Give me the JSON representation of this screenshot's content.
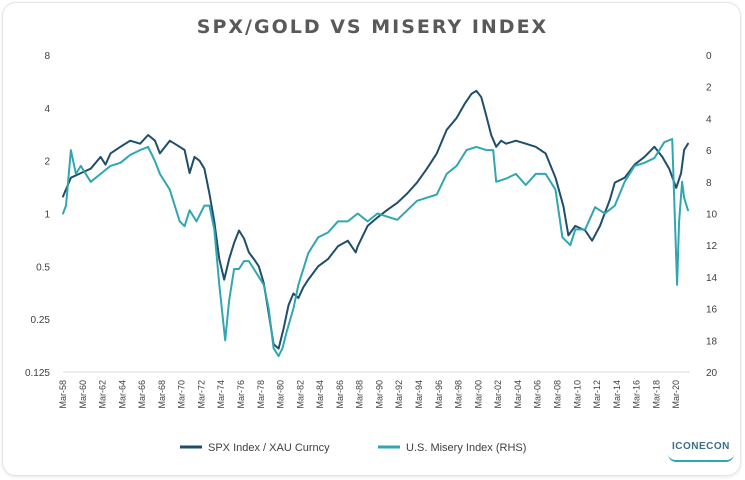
{
  "chart_data": {
    "type": "line",
    "title": "SPX/GOLD VS MISERY INDEX",
    "left_axis": {
      "scale": "log2",
      "ticks": [
        8,
        4,
        2,
        1,
        0.5,
        0.25,
        0.125
      ],
      "tick_labels": [
        "8",
        "4",
        "2",
        "1",
        "0.5",
        "0.25",
        "0.125"
      ],
      "range": [
        0.125,
        8
      ]
    },
    "right_axis": {
      "inverted": true,
      "ticks": [
        0,
        2,
        4,
        6,
        8,
        10,
        12,
        14,
        16,
        18,
        20
      ],
      "tick_labels": [
        "0",
        "2",
        "4",
        "6",
        "8",
        "10",
        "12",
        "14",
        "16",
        "18",
        "20"
      ],
      "range": [
        0,
        20
      ]
    },
    "x_axis": {
      "range": [
        1958.2,
        2021.6
      ],
      "tick_labels": [
        "Mar-58",
        "Mar-60",
        "Mar-62",
        "Mar-64",
        "Mar-66",
        "Mar-68",
        "Mar-70",
        "Mar-72",
        "Mar-74",
        "Mar-76",
        "Mar-78",
        "Mar-80",
        "Mar-82",
        "Mar-84",
        "Mar-86",
        "Mar-88",
        "Mar-90",
        "Mar-92",
        "Mar-94",
        "Mar-96",
        "Mar-98",
        "Mar-00",
        "Mar-02",
        "Mar-04",
        "Mar-06",
        "Mar-08",
        "Mar-10",
        "Mar-12",
        "Mar-14",
        "Mar-16",
        "Mar-18",
        "Mar-20"
      ]
    },
    "series": [
      {
        "name": "SPX Index / XAU Curncy",
        "color": "#1f4e6b",
        "axis": "left",
        "x": [
          1958.2,
          1959,
          1960,
          1961,
          1962,
          1962.5,
          1963,
          1964,
          1965,
          1966,
          1966.8,
          1967.5,
          1968,
          1969,
          1970,
          1970.5,
          1971,
          1971.5,
          1972,
          1972.5,
          1973,
          1973.5,
          1974,
          1974.5,
          1975,
          1975.5,
          1976,
          1976.5,
          1977,
          1977.5,
          1978,
          1978.5,
          1979,
          1979.5,
          1980,
          1980.5,
          1981,
          1981.5,
          1982,
          1982.5,
          1983,
          1984,
          1985,
          1986,
          1987,
          1987.8,
          1988,
          1989,
          1990,
          1991,
          1992,
          1993,
          1994,
          1995,
          1996,
          1997,
          1998,
          1998.8,
          1999.5,
          2000,
          2000.5,
          2001,
          2001.5,
          2002,
          2002.5,
          2003,
          2004,
          2005,
          2006,
          2007,
          2008,
          2008.8,
          2009.3,
          2010,
          2011,
          2011.7,
          2012.5,
          2013.5,
          2014,
          2015,
          2016,
          2017,
          2018,
          2018.8,
          2019.5,
          2020.2,
          2020.7,
          2021,
          2021.4
        ],
        "y": [
          1.25,
          1.6,
          1.7,
          1.8,
          2.1,
          1.9,
          2.2,
          2.4,
          2.6,
          2.5,
          2.8,
          2.6,
          2.2,
          2.6,
          2.4,
          2.3,
          1.7,
          2.1,
          2.0,
          1.8,
          1.3,
          0.9,
          0.55,
          0.42,
          0.55,
          0.68,
          0.8,
          0.72,
          0.6,
          0.55,
          0.5,
          0.4,
          0.27,
          0.18,
          0.17,
          0.22,
          0.3,
          0.35,
          0.33,
          0.38,
          0.42,
          0.5,
          0.55,
          0.65,
          0.7,
          0.6,
          0.65,
          0.85,
          0.95,
          1.05,
          1.15,
          1.3,
          1.5,
          1.8,
          2.2,
          3.0,
          3.5,
          4.2,
          4.8,
          5.0,
          4.6,
          3.6,
          2.8,
          2.4,
          2.6,
          2.5,
          2.6,
          2.5,
          2.4,
          2.2,
          1.6,
          1.1,
          0.75,
          0.85,
          0.8,
          0.7,
          0.85,
          1.2,
          1.5,
          1.6,
          1.9,
          2.1,
          2.4,
          2.1,
          1.8,
          1.4,
          1.7,
          2.3,
          2.5
        ]
      },
      {
        "name": "U.S. Misery Index (RHS)",
        "color": "#30a6b0",
        "axis": "right",
        "x": [
          1958.2,
          1958.5,
          1959,
          1959.5,
          1960,
          1961,
          1962,
          1963,
          1964,
          1965,
          1966,
          1966.8,
          1967.5,
          1968,
          1969,
          1970,
          1970.5,
          1971,
          1971.7,
          1972.5,
          1973,
          1973.5,
          1974,
          1974.6,
          1975,
          1975.5,
          1976,
          1976.5,
          1977,
          1977.5,
          1978,
          1978.5,
          1979,
          1979.5,
          1980,
          1980.4,
          1980.8,
          1981.5,
          1982,
          1983,
          1984,
          1985,
          1986,
          1987,
          1988,
          1989,
          1990,
          1991,
          1992,
          1993,
          1994,
          1995,
          1996,
          1997,
          1998,
          1999,
          2000,
          2001,
          2001.7,
          2002,
          2003,
          2004,
          2005,
          2006,
          2007,
          2008,
          2008.7,
          2009.5,
          2010,
          2011,
          2012,
          2013,
          2014,
          2015,
          2016,
          2017,
          2018,
          2019,
          2019.8,
          2020.3,
          2020.5,
          2020.8,
          2021,
          2021.4
        ],
        "y": [
          10.0,
          9.5,
          6.0,
          7.5,
          7.0,
          8.0,
          7.5,
          7.0,
          6.8,
          6.3,
          6.0,
          5.8,
          6.7,
          7.5,
          8.5,
          10.5,
          10.8,
          9.8,
          10.5,
          9.5,
          9.5,
          11.0,
          14.5,
          18.0,
          15.5,
          13.5,
          13.5,
          13.0,
          13.0,
          13.5,
          14.0,
          14.5,
          16.0,
          18.5,
          19.0,
          18.5,
          17.5,
          16.0,
          14.5,
          12.5,
          11.5,
          11.2,
          10.5,
          10.5,
          10.0,
          10.5,
          10.0,
          10.2,
          10.4,
          9.8,
          9.2,
          9.0,
          8.8,
          7.5,
          7.0,
          6.0,
          5.8,
          6.0,
          6.0,
          8.0,
          7.8,
          7.5,
          8.2,
          7.5,
          7.5,
          8.5,
          11.5,
          12.0,
          11.0,
          11.0,
          9.6,
          10.0,
          9.5,
          8.0,
          7.0,
          6.8,
          6.5,
          5.5,
          5.3,
          14.5,
          10.5,
          8.0,
          9.0,
          9.8
        ]
      }
    ],
    "legend": {
      "position": "bottom",
      "entries": [
        "SPX Index / XAU Curncy",
        "U.S. Misery Index (RHS)"
      ]
    },
    "grid": false
  },
  "logo": {
    "text": "ICONECON"
  }
}
